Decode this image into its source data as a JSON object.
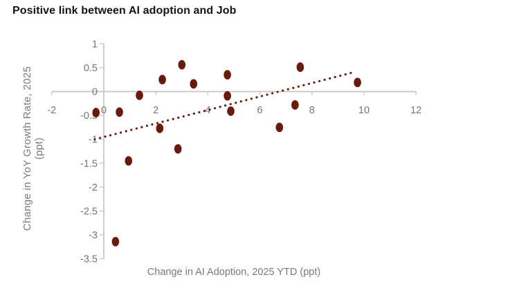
{
  "title": "Positive link between AI adoption and Job",
  "chart_data": {
    "type": "scatter",
    "title": "Positive link between AI adoption and Job",
    "xlabel": "Change in AI Adoption, 2025 YTD (ppt)",
    "ylabel": "Change in YoY Growth Rate, 2025 (ppt)",
    "ylabel_lines": [
      "Change in YoY Growth Rate, 2025",
      "(ppt)"
    ],
    "xlim": [
      -2,
      12
    ],
    "ylim": [
      -3.5,
      1
    ],
    "x_ticks": [
      -2,
      0,
      2,
      4,
      6,
      8,
      10,
      12
    ],
    "y_ticks": [
      1,
      0.5,
      0,
      -0.5,
      -1,
      -1.5,
      -2,
      -2.5,
      -3,
      -3.5
    ],
    "grid": false,
    "legend": false,
    "axes_cross_at_zero": true,
    "points": [
      {
        "x": -0.3,
        "y": -0.44
      },
      {
        "x": 0.6,
        "y": -0.43
      },
      {
        "x": 1.37,
        "y": -0.08
      },
      {
        "x": 2.25,
        "y": 0.25
      },
      {
        "x": 3.0,
        "y": 0.56
      },
      {
        "x": 3.45,
        "y": 0.16
      },
      {
        "x": 4.75,
        "y": 0.35
      },
      {
        "x": 4.75,
        "y": -0.09
      },
      {
        "x": 4.88,
        "y": -0.41
      },
      {
        "x": 2.15,
        "y": -0.77
      },
      {
        "x": 0.95,
        "y": -1.45
      },
      {
        "x": 2.85,
        "y": -1.2
      },
      {
        "x": 0.45,
        "y": -3.14
      },
      {
        "x": 6.75,
        "y": -0.75
      },
      {
        "x": 7.35,
        "y": -0.28
      },
      {
        "x": 7.55,
        "y": 0.51
      },
      {
        "x": 9.75,
        "y": 0.19
      }
    ],
    "trend": {
      "style": "dotted",
      "start": {
        "x": -0.35,
        "y": -1.0
      },
      "end": {
        "x": 9.65,
        "y": 0.41
      }
    },
    "colors": {
      "marker": "#681b0d",
      "trend": "#681b0d",
      "axis": "#c6c6c6",
      "tick_label": "#757575",
      "axis_title": "#7a7a7a",
      "title": "#141414"
    }
  }
}
